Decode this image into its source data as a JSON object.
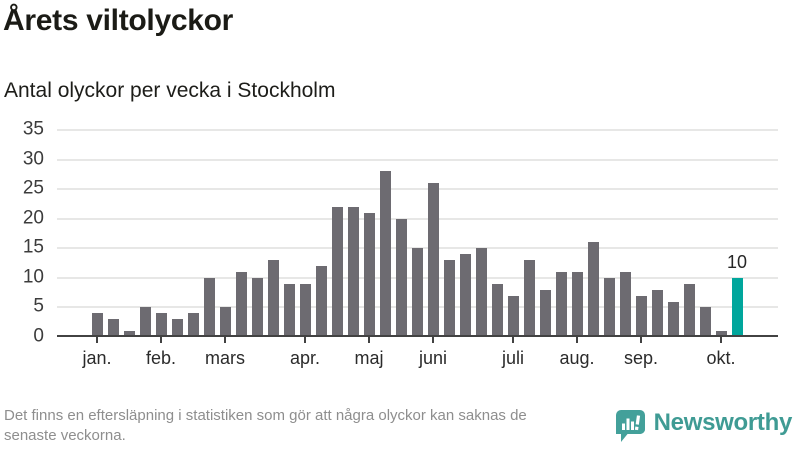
{
  "header": {
    "title": "Årets viltolyckor",
    "subtitle": "Antal olyckor per vecka i Stockholm"
  },
  "chart_data": {
    "type": "bar",
    "title": "Årets viltolyckor",
    "subtitle": "Antal olyckor per vecka i Stockholm",
    "x_unit": "vecka",
    "values": [
      4,
      3,
      1,
      5,
      4,
      3,
      4,
      10,
      5,
      11,
      10,
      13,
      9,
      9,
      12,
      22,
      22,
      21,
      28,
      20,
      15,
      26,
      13,
      14,
      15,
      9,
      7,
      13,
      8,
      11,
      11,
      16,
      10,
      11,
      7,
      8,
      6,
      9,
      5,
      1,
      10
    ],
    "y_ticks": [
      0,
      5,
      10,
      15,
      20,
      25,
      30,
      35
    ],
    "ylim": [
      0,
      35
    ],
    "grid": true,
    "month_labels": [
      "jan.",
      "feb.",
      "mars",
      "apr.",
      "maj",
      "juni",
      "juli",
      "aug.",
      "sep.",
      "okt."
    ],
    "month_tick_indices": [
      0,
      4,
      8,
      13,
      17,
      21,
      26,
      30,
      34,
      39
    ],
    "highlight_last": true,
    "last_value_label": "10",
    "bar_color": "#6d6b71",
    "highlight_color": "#00a69c"
  },
  "footer": {
    "note_lines": [
      "Det finns en eftersläpning i statistiken som gör att några olyckor kan saknas de",
      "senaste veckorna."
    ],
    "brand": "Newsworthy",
    "brand_color": "#3f9b94"
  }
}
